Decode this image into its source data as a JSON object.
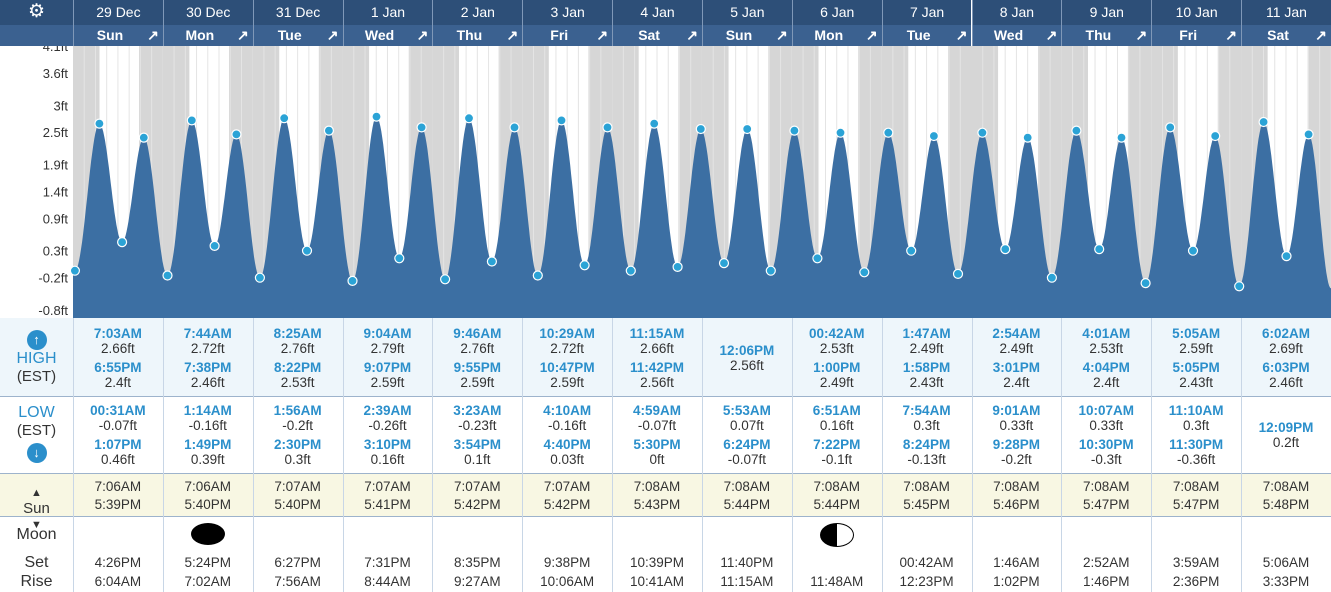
{
  "header": {
    "settings_icon": "gear-icon",
    "dates": [
      "29 Dec",
      "30 Dec",
      "31 Dec",
      "1 Jan",
      "2 Jan",
      "3 Jan",
      "4 Jan",
      "5 Jan",
      "6 Jan",
      "7 Jan",
      "8 Jan",
      "9 Jan",
      "10 Jan",
      "11 Jan"
    ],
    "weekdays": [
      "Sun",
      "Mon",
      "Tue",
      "Wed",
      "Thu",
      "Fri",
      "Sat",
      "Sun",
      "Mon",
      "Tue",
      "Wed",
      "Thu",
      "Fri",
      "Sat"
    ],
    "expand_icon": "expand-arrow-icon"
  },
  "chart_data": {
    "type": "area",
    "y_tick_labels": [
      "4.1ft",
      "3.6ft",
      "3ft",
      "2.5ft",
      "1.9ft",
      "1.4ft",
      "0.9ft",
      "0.3ft",
      "-0.2ft",
      "-0.8ft"
    ],
    "y_ticks": [
      4.1,
      3.6,
      3.0,
      2.5,
      1.9,
      1.4,
      0.9,
      0.3,
      -0.2,
      -0.8
    ],
    "ylim": [
      -0.8,
      4.1
    ],
    "xlim_days": [
      0,
      14
    ],
    "points": [
      {
        "day": 0,
        "t": "00:31",
        "h": -0.07
      },
      {
        "day": 0,
        "t": "07:03",
        "h": 2.66
      },
      {
        "day": 0,
        "t": "13:07",
        "h": 0.46
      },
      {
        "day": 0,
        "t": "18:55",
        "h": 2.4
      },
      {
        "day": 1,
        "t": "01:14",
        "h": -0.16
      },
      {
        "day": 1,
        "t": "07:44",
        "h": 2.72
      },
      {
        "day": 1,
        "t": "13:49",
        "h": 0.39
      },
      {
        "day": 1,
        "t": "19:38",
        "h": 2.46
      },
      {
        "day": 2,
        "t": "01:56",
        "h": -0.2
      },
      {
        "day": 2,
        "t": "08:25",
        "h": 2.76
      },
      {
        "day": 2,
        "t": "14:30",
        "h": 0.3
      },
      {
        "day": 2,
        "t": "20:22",
        "h": 2.53
      },
      {
        "day": 3,
        "t": "02:39",
        "h": -0.26
      },
      {
        "day": 3,
        "t": "09:04",
        "h": 2.79
      },
      {
        "day": 3,
        "t": "15:10",
        "h": 0.16
      },
      {
        "day": 3,
        "t": "21:07",
        "h": 2.59
      },
      {
        "day": 4,
        "t": "03:23",
        "h": -0.23
      },
      {
        "day": 4,
        "t": "09:46",
        "h": 2.76
      },
      {
        "day": 4,
        "t": "15:54",
        "h": 0.1
      },
      {
        "day": 4,
        "t": "21:55",
        "h": 2.59
      },
      {
        "day": 5,
        "t": "04:10",
        "h": -0.16
      },
      {
        "day": 5,
        "t": "10:29",
        "h": 2.72
      },
      {
        "day": 5,
        "t": "16:40",
        "h": 0.03
      },
      {
        "day": 5,
        "t": "22:47",
        "h": 2.59
      },
      {
        "day": 6,
        "t": "04:59",
        "h": -0.07
      },
      {
        "day": 6,
        "t": "11:15",
        "h": 2.66
      },
      {
        "day": 6,
        "t": "17:30",
        "h": 0
      },
      {
        "day": 6,
        "t": "23:42",
        "h": 2.56
      },
      {
        "day": 7,
        "t": "05:53",
        "h": 0.07
      },
      {
        "day": 7,
        "t": "12:06",
        "h": 2.56
      },
      {
        "day": 7,
        "t": "18:24",
        "h": -0.07
      },
      {
        "day": 8,
        "t": "00:42",
        "h": 2.53
      },
      {
        "day": 8,
        "t": "06:51",
        "h": 0.16
      },
      {
        "day": 8,
        "t": "13:00",
        "h": 2.49
      },
      {
        "day": 8,
        "t": "19:22",
        "h": -0.1
      },
      {
        "day": 9,
        "t": "01:47",
        "h": 2.49
      },
      {
        "day": 9,
        "t": "07:54",
        "h": 0.3
      },
      {
        "day": 9,
        "t": "13:58",
        "h": 2.43
      },
      {
        "day": 9,
        "t": "20:24",
        "h": -0.13
      },
      {
        "day": 10,
        "t": "02:54",
        "h": 2.49
      },
      {
        "day": 10,
        "t": "09:01",
        "h": 0.33
      },
      {
        "day": 10,
        "t": "15:01",
        "h": 2.4
      },
      {
        "day": 10,
        "t": "21:28",
        "h": -0.2
      },
      {
        "day": 11,
        "t": "04:01",
        "h": 2.53
      },
      {
        "day": 11,
        "t": "10:07",
        "h": 0.33
      },
      {
        "day": 11,
        "t": "16:04",
        "h": 2.4
      },
      {
        "day": 11,
        "t": "22:30",
        "h": -0.3
      },
      {
        "day": 12,
        "t": "05:05",
        "h": 2.59
      },
      {
        "day": 12,
        "t": "11:10",
        "h": 0.3
      },
      {
        "day": 12,
        "t": "17:05",
        "h": 2.43
      },
      {
        "day": 12,
        "t": "23:30",
        "h": -0.36
      },
      {
        "day": 13,
        "t": "06:02",
        "h": 2.69
      },
      {
        "day": 13,
        "t": "12:09",
        "h": 0.2
      },
      {
        "day": 13,
        "t": "18:03",
        "h": 2.46
      }
    ],
    "sunrise": [
      "07:06",
      "07:06",
      "07:07",
      "07:07",
      "07:07",
      "07:07",
      "07:08",
      "07:08",
      "07:08",
      "07:08",
      "07:08",
      "07:08",
      "07:08",
      "07:08"
    ],
    "sunset": [
      "17:39",
      "17:40",
      "17:40",
      "17:41",
      "17:42",
      "17:42",
      "17:43",
      "17:44",
      "17:44",
      "17:45",
      "17:46",
      "17:47",
      "17:47",
      "17:48"
    ],
    "colors": {
      "tide": "#3c6fa3",
      "night": "#d6d6d6",
      "day": "#ffffff",
      "marker": "#2ba3d6"
    }
  },
  "labels": {
    "high": "HIGH",
    "high_tz": "(EST)",
    "low": "LOW",
    "low_tz": "(EST)",
    "sun": "Sun",
    "moon": "Moon",
    "set": "Set",
    "rise": "Rise"
  },
  "high": [
    {
      "t1": "7:03AM",
      "h1": "2.66ft",
      "t2": "6:55PM",
      "h2": "2.4ft"
    },
    {
      "t1": "7:44AM",
      "h1": "2.72ft",
      "t2": "7:38PM",
      "h2": "2.46ft"
    },
    {
      "t1": "8:25AM",
      "h1": "2.76ft",
      "t2": "8:22PM",
      "h2": "2.53ft"
    },
    {
      "t1": "9:04AM",
      "h1": "2.79ft",
      "t2": "9:07PM",
      "h2": "2.59ft"
    },
    {
      "t1": "9:46AM",
      "h1": "2.76ft",
      "t2": "9:55PM",
      "h2": "2.59ft"
    },
    {
      "t1": "10:29AM",
      "h1": "2.72ft",
      "t2": "10:47PM",
      "h2": "2.59ft"
    },
    {
      "t1": "11:15AM",
      "h1": "2.66ft",
      "t2": "11:42PM",
      "h2": "2.56ft"
    },
    {
      "t1": "",
      "h1": "",
      "t2": "",
      "h2": "",
      "single_t": "12:06PM",
      "single_h": "2.56ft"
    },
    {
      "t1": "00:42AM",
      "h1": "2.53ft",
      "t2": "1:00PM",
      "h2": "2.49ft"
    },
    {
      "t1": "1:47AM",
      "h1": "2.49ft",
      "t2": "1:58PM",
      "h2": "2.43ft"
    },
    {
      "t1": "2:54AM",
      "h1": "2.49ft",
      "t2": "3:01PM",
      "h2": "2.4ft"
    },
    {
      "t1": "4:01AM",
      "h1": "2.53ft",
      "t2": "4:04PM",
      "h2": "2.4ft"
    },
    {
      "t1": "5:05AM",
      "h1": "2.59ft",
      "t2": "5:05PM",
      "h2": "2.43ft"
    },
    {
      "t1": "6:02AM",
      "h1": "2.69ft",
      "t2": "6:03PM",
      "h2": "2.46ft"
    }
  ],
  "low": [
    {
      "t1": "00:31AM",
      "h1": "-0.07ft",
      "t2": "1:07PM",
      "h2": "0.46ft"
    },
    {
      "t1": "1:14AM",
      "h1": "-0.16ft",
      "t2": "1:49PM",
      "h2": "0.39ft"
    },
    {
      "t1": "1:56AM",
      "h1": "-0.2ft",
      "t2": "2:30PM",
      "h2": "0.3ft"
    },
    {
      "t1": "2:39AM",
      "h1": "-0.26ft",
      "t2": "3:10PM",
      "h2": "0.16ft"
    },
    {
      "t1": "3:23AM",
      "h1": "-0.23ft",
      "t2": "3:54PM",
      "h2": "0.1ft"
    },
    {
      "t1": "4:10AM",
      "h1": "-0.16ft",
      "t2": "4:40PM",
      "h2": "0.03ft"
    },
    {
      "t1": "4:59AM",
      "h1": "-0.07ft",
      "t2": "5:30PM",
      "h2": "0ft"
    },
    {
      "t1": "5:53AM",
      "h1": "0.07ft",
      "t2": "6:24PM",
      "h2": "-0.07ft"
    },
    {
      "t1": "6:51AM",
      "h1": "0.16ft",
      "t2": "7:22PM",
      "h2": "-0.1ft"
    },
    {
      "t1": "7:54AM",
      "h1": "0.3ft",
      "t2": "8:24PM",
      "h2": "-0.13ft"
    },
    {
      "t1": "9:01AM",
      "h1": "0.33ft",
      "t2": "9:28PM",
      "h2": "-0.2ft"
    },
    {
      "t1": "10:07AM",
      "h1": "0.33ft",
      "t2": "10:30PM",
      "h2": "-0.3ft"
    },
    {
      "t1": "11:10AM",
      "h1": "0.3ft",
      "t2": "11:30PM",
      "h2": "-0.36ft"
    },
    {
      "t1": "",
      "h1": "",
      "t2": "",
      "h2": "",
      "single_t": "12:09PM",
      "single_h": "0.2ft"
    }
  ],
  "sun": [
    {
      "rise": "7:06AM",
      "set": "5:39PM"
    },
    {
      "rise": "7:06AM",
      "set": "5:40PM"
    },
    {
      "rise": "7:07AM",
      "set": "5:40PM"
    },
    {
      "rise": "7:07AM",
      "set": "5:41PM"
    },
    {
      "rise": "7:07AM",
      "set": "5:42PM"
    },
    {
      "rise": "7:07AM",
      "set": "5:42PM"
    },
    {
      "rise": "7:08AM",
      "set": "5:43PM"
    },
    {
      "rise": "7:08AM",
      "set": "5:44PM"
    },
    {
      "rise": "7:08AM",
      "set": "5:44PM"
    },
    {
      "rise": "7:08AM",
      "set": "5:45PM"
    },
    {
      "rise": "7:08AM",
      "set": "5:46PM"
    },
    {
      "rise": "7:08AM",
      "set": "5:47PM"
    },
    {
      "rise": "7:08AM",
      "set": "5:47PM"
    },
    {
      "rise": "7:08AM",
      "set": "5:48PM"
    }
  ],
  "moon": [
    {
      "set": "4:26PM",
      "rise": "6:04AM",
      "phase": ""
    },
    {
      "set": "5:24PM",
      "rise": "7:02AM",
      "phase": "new-moon"
    },
    {
      "set": "6:27PM",
      "rise": "7:56AM",
      "phase": ""
    },
    {
      "set": "7:31PM",
      "rise": "8:44AM",
      "phase": ""
    },
    {
      "set": "8:35PM",
      "rise": "9:27AM",
      "phase": ""
    },
    {
      "set": "9:38PM",
      "rise": "10:06AM",
      "phase": ""
    },
    {
      "set": "10:39PM",
      "rise": "10:41AM",
      "phase": ""
    },
    {
      "set": "11:40PM",
      "rise": "11:15AM",
      "phase": ""
    },
    {
      "set": "",
      "rise": "11:48AM",
      "phase": "first-quarter"
    },
    {
      "set": "00:42AM",
      "rise": "12:23PM",
      "phase": ""
    },
    {
      "set": "1:46AM",
      "rise": "1:02PM",
      "phase": ""
    },
    {
      "set": "2:52AM",
      "rise": "1:46PM",
      "phase": ""
    },
    {
      "set": "3:59AM",
      "rise": "2:36PM",
      "phase": ""
    },
    {
      "set": "5:06AM",
      "rise": "3:33PM",
      "phase": ""
    }
  ]
}
